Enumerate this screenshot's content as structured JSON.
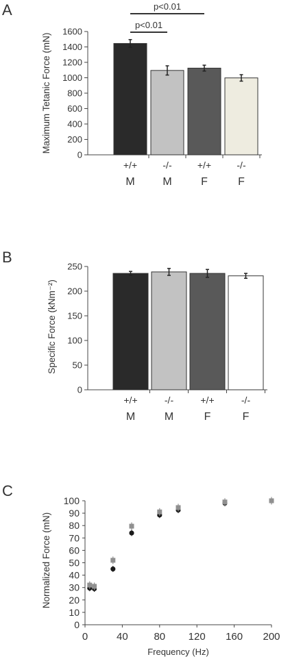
{
  "chart_data": [
    {
      "panel_label": "A",
      "type": "bar",
      "categories": [
        [
          "+/+",
          "M"
        ],
        [
          "-/-",
          "M"
        ],
        [
          "+/+",
          "F"
        ],
        [
          "-/-",
          "F"
        ]
      ],
      "values": [
        1445,
        1095,
        1125,
        998
      ],
      "errors": [
        50,
        60,
        38,
        42
      ],
      "bar_colors": [
        "#2a2a2a",
        "#c2c2c2",
        "#595959",
        "#eeece0"
      ],
      "ylabel": "Maximum Tetanic Force (mN)",
      "ylim": [
        0,
        1600
      ],
      "yticks": [
        0,
        200,
        400,
        600,
        800,
        1000,
        1200,
        1400,
        1600
      ],
      "annotations": [
        {
          "text": "p<0.01",
          "from": 0,
          "to": 1
        },
        {
          "text": "p<0.01",
          "from": 0,
          "to": 2
        }
      ]
    },
    {
      "panel_label": "B",
      "type": "bar",
      "categories": [
        [
          "+/+",
          "M"
        ],
        [
          "-/-",
          "M"
        ],
        [
          "+/+",
          "F"
        ],
        [
          "-/-",
          "F"
        ]
      ],
      "values": [
        236,
        239,
        236,
        231
      ],
      "errors": [
        4,
        7,
        8,
        5
      ],
      "bar_colors": [
        "#2a2a2a",
        "#c2c2c2",
        "#595959",
        "#ffffff"
      ],
      "ylabel": "Specific Force (kNm⁻²)",
      "ylim": [
        0,
        250
      ],
      "yticks": [
        0,
        50,
        100,
        150,
        200,
        250
      ]
    },
    {
      "panel_label": "C",
      "type": "scatter",
      "xlabel": "Frequency (Hz)",
      "ylabel": "Normalized Force (mN)",
      "xlim": [
        0,
        200
      ],
      "ylim": [
        0,
        100
      ],
      "xticks": [
        0,
        40,
        80,
        120,
        160,
        200
      ],
      "yticks": [
        0,
        10,
        20,
        30,
        40,
        50,
        60,
        70,
        80,
        90,
        100
      ],
      "series": [
        {
          "marker": "circle",
          "color": "#1a1a1a",
          "x": [
            5,
            10,
            30,
            50,
            80,
            100,
            150,
            200
          ],
          "y": [
            29.5,
            29,
            45,
            74,
            88.5,
            92.5,
            98,
            100
          ]
        },
        {
          "marker": "square",
          "color": "#909090",
          "x": [
            5,
            10,
            30,
            50,
            80,
            100,
            150,
            200
          ],
          "y": [
            32,
            31,
            52,
            79.5,
            91,
            94.5,
            99,
            100
          ]
        }
      ]
    }
  ]
}
